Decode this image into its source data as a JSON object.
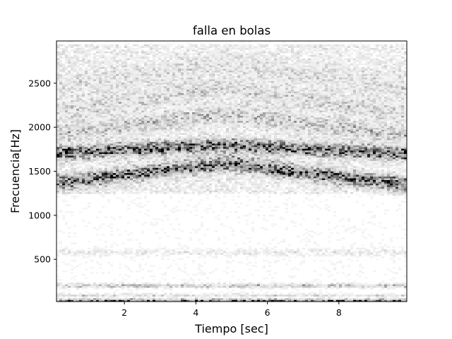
{
  "chart_data": {
    "type": "heatmap",
    "title": "falla en bolas",
    "xlabel": "Tiempo [sec]",
    "ylabel": "Frecuencia[Hz]",
    "xlim": [
      0.1,
      9.9
    ],
    "ylim": [
      20,
      2980
    ],
    "x_ticks": [
      2,
      4,
      6,
      8
    ],
    "x_tick_labels": [
      "2",
      "4",
      "6",
      "8"
    ],
    "y_ticks": [
      500,
      1000,
      1500,
      2000,
      2500
    ],
    "y_tick_labels": [
      "500",
      "1000",
      "1500",
      "2000",
      "2500"
    ],
    "colormap": "gray_r",
    "grid": false,
    "legend": "none",
    "intensity_model": {
      "description": "relative magnitude (0-1) of the spectrogram; chevron-shaped energy bands peaking near t=4.8 s",
      "peak_time": 4.8,
      "chevron_bands": [
        {
          "f_at_edges": 1320,
          "f_at_peak": 1620,
          "width": 55,
          "strength": 0.28
        },
        {
          "f_at_edges": 1700,
          "f_at_peak": 1800,
          "width": 45,
          "strength": 0.55
        },
        {
          "f_at_edges": 1380,
          "f_at_peak": 1560,
          "width": 35,
          "strength": 0.3
        },
        {
          "f_at_edges": 1900,
          "f_at_peak": 2150,
          "width": 60,
          "strength": 0.14
        },
        {
          "f_at_edges": 2150,
          "f_at_peak": 2450,
          "width": 70,
          "strength": 0.08
        },
        {
          "f_at_edges": 2450,
          "f_at_peak": 2720,
          "width": 80,
          "strength": 0.05
        }
      ],
      "flat_bands": [
        {
          "f": 30,
          "width": 12,
          "strength": 0.6
        },
        {
          "f": 90,
          "width": 12,
          "strength": 0.12
        },
        {
          "f": 200,
          "width": 15,
          "strength": 0.18
        },
        {
          "f": 580,
          "width": 25,
          "strength": 0.06
        }
      ],
      "background": 0.02
    }
  }
}
